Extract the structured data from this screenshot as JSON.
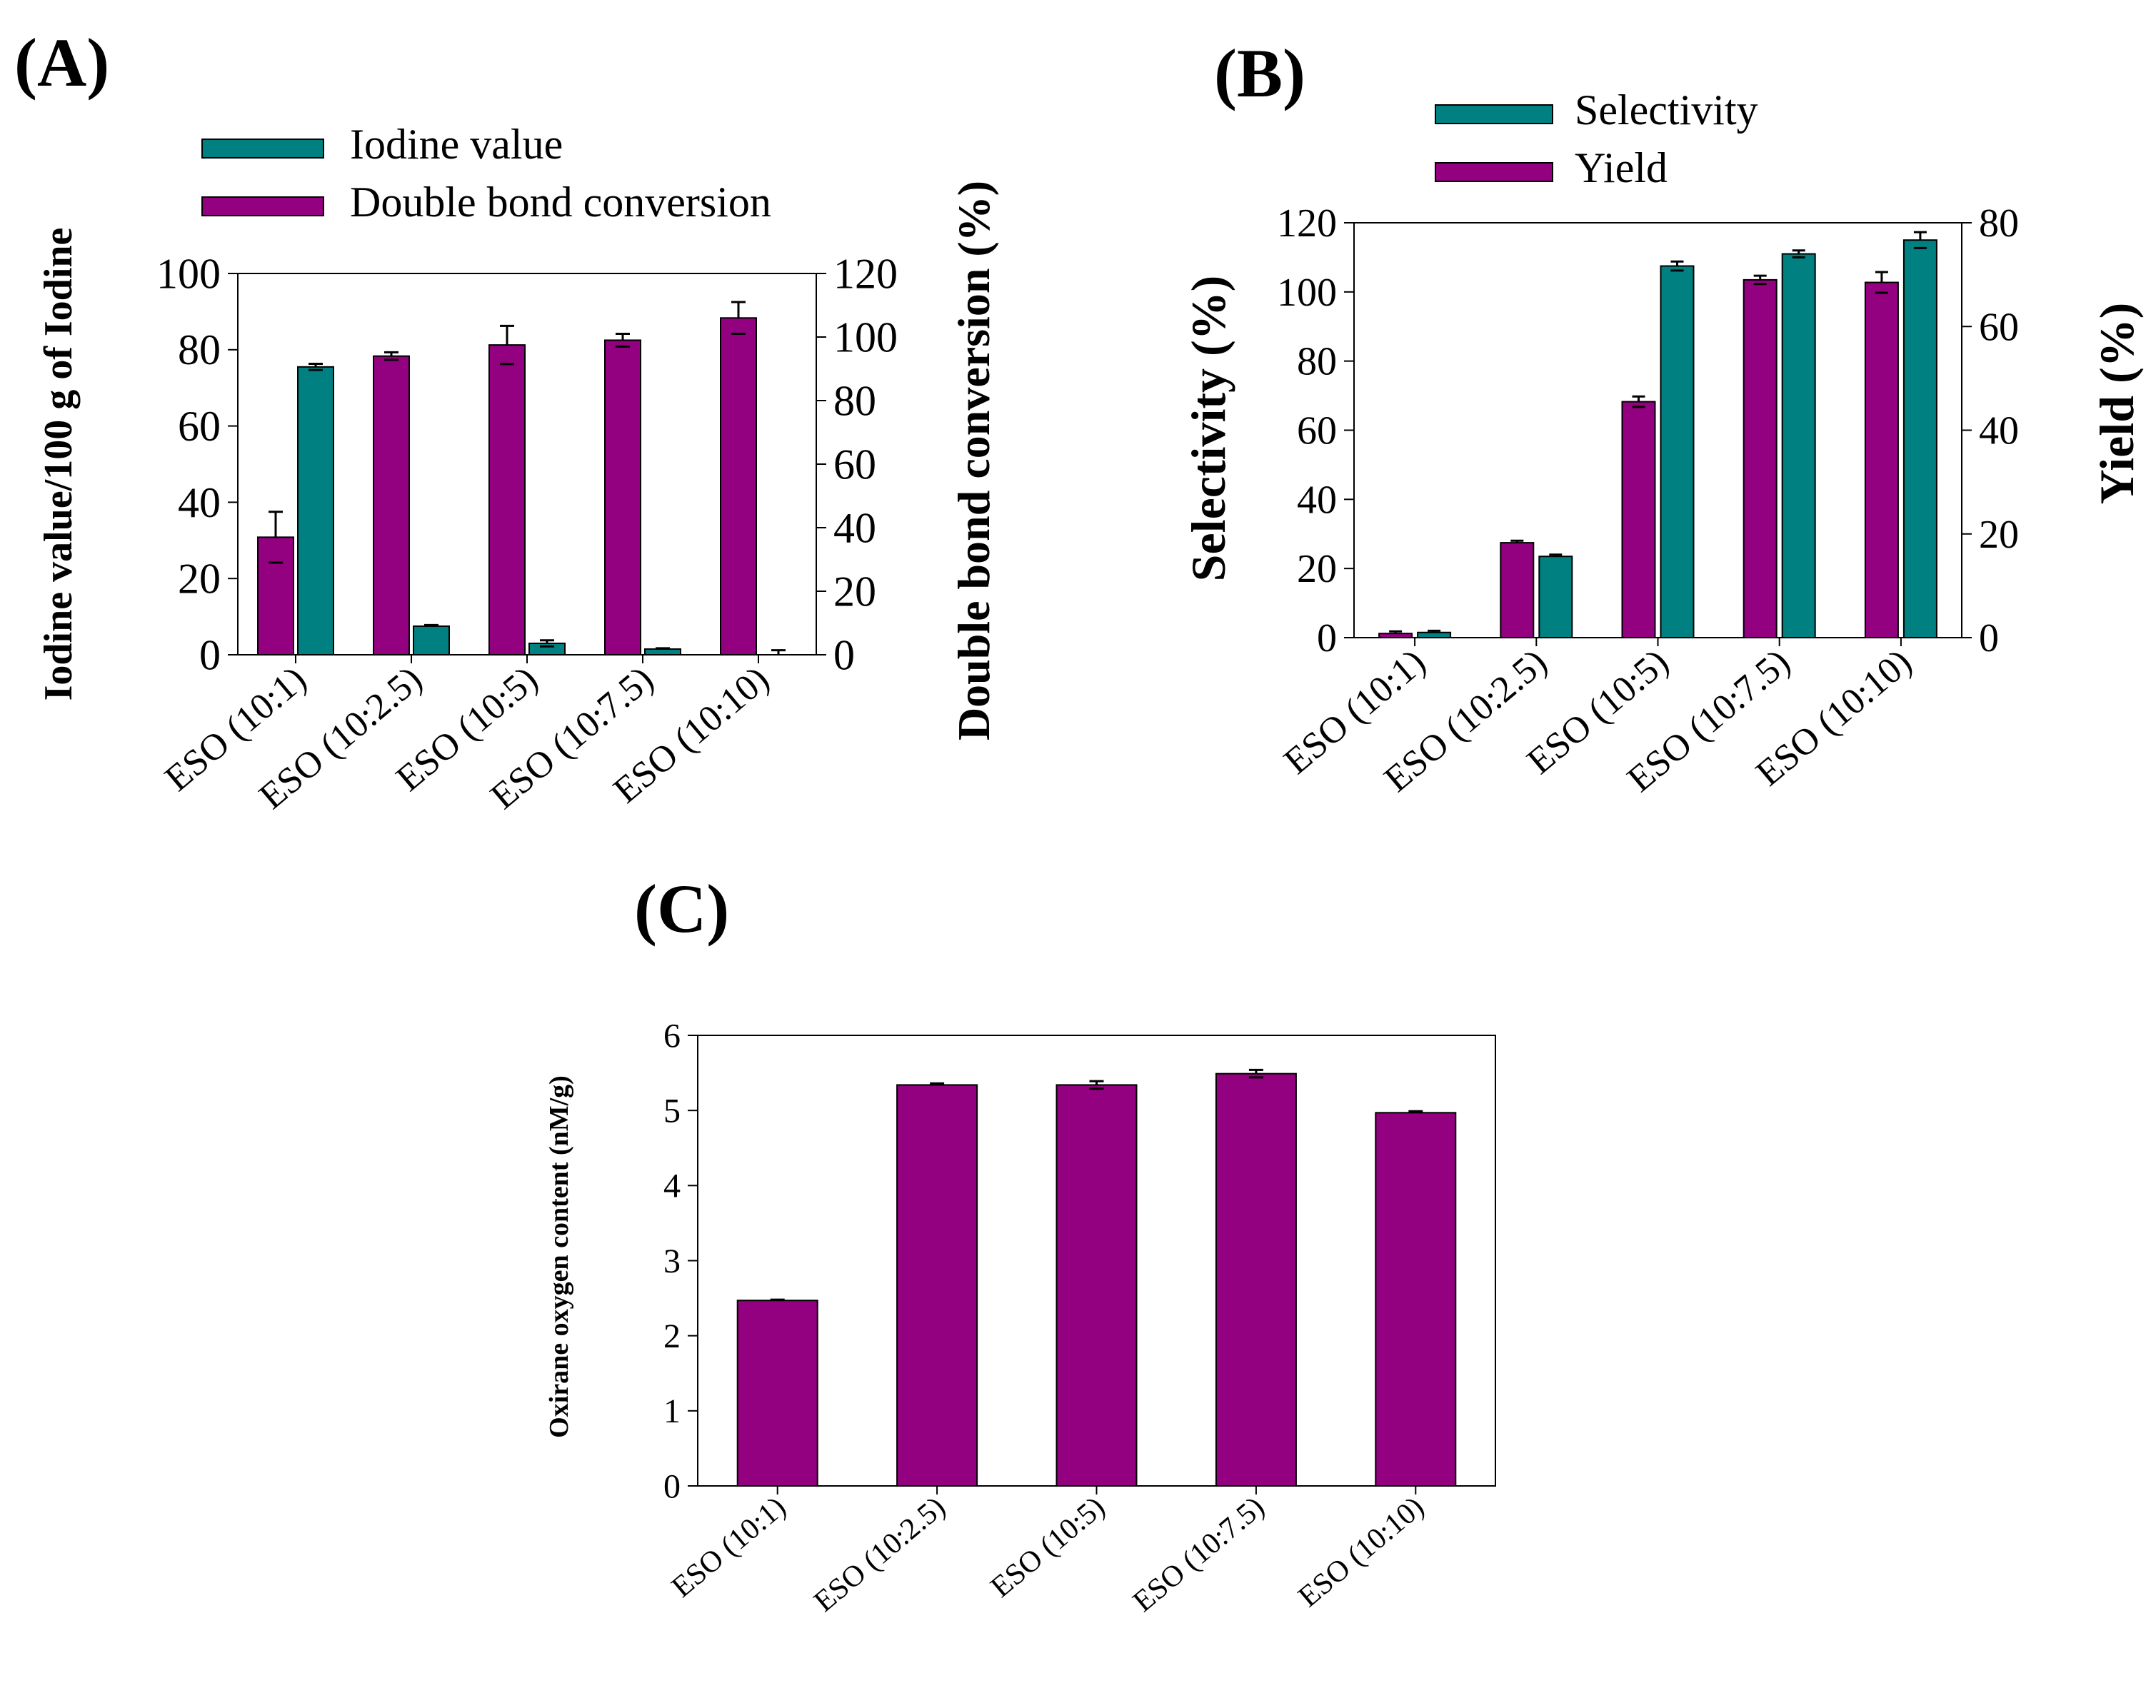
{
  "colors": {
    "teal": "#008080",
    "purple": "#930080",
    "axis": "#000000"
  },
  "chart_data": [
    {
      "panel": "(A)",
      "type": "bar",
      "categories": [
        "ESO (10:1)",
        "ESO (10:2.5)",
        "ESO (10:5)",
        "ESO (10:7.5)",
        "ESO (10:10)"
      ],
      "series": [
        {
          "name": "Iodine value",
          "axis": "left",
          "color": "teal",
          "values": [
            75.5,
            7.5,
            3,
            1.5,
            0
          ],
          "errors": [
            0.8,
            0.3,
            0.8,
            0.2,
            1.2
          ]
        },
        {
          "name": "Double bond conversion",
          "axis": "right",
          "color": "purple",
          "values": [
            37,
            94,
            97.5,
            99,
            106
          ],
          "errors": [
            8,
            1.2,
            6,
            2,
            5
          ]
        }
      ],
      "bar_order": [
        "Double bond conversion",
        "Iodine value"
      ],
      "ylabel": "Iodine value/100 g of Iodine",
      "ylabel2": "Double bond conversion (%)",
      "ylim": [
        0,
        100
      ],
      "yticks": [
        0,
        20,
        40,
        60,
        80,
        100
      ],
      "ylim2": [
        0,
        120
      ],
      "yticks2": [
        0,
        20,
        40,
        60,
        80,
        100,
        120
      ],
      "legend": "top"
    },
    {
      "panel": "(B)",
      "type": "bar",
      "categories": [
        "ESO (10:1)",
        "ESO (10:2.5)",
        "ESO (10:5)",
        "ESO (10:7.5)",
        "ESO (10:10)"
      ],
      "series": [
        {
          "name": "Yield",
          "axis": "right",
          "color": "purple",
          "values": [
            0.8,
            18.3,
            45.5,
            69,
            68.5
          ],
          "errors": [
            0.4,
            0.4,
            1,
            0.8,
            2
          ]
        },
        {
          "name": "Selectivity",
          "axis": "left",
          "color": "teal",
          "values": [
            1.5,
            23.5,
            107.5,
            111,
            115
          ],
          "errors": [
            0.5,
            0.5,
            1.3,
            1,
            2.3
          ]
        }
      ],
      "bar_order": [
        "Yield",
        "Selectivity"
      ],
      "legend_order": [
        "Selectivity",
        "Yield"
      ],
      "ylabel": "Selectivity (%)",
      "ylabel2": "Yield (%)",
      "ylim": [
        0,
        120
      ],
      "yticks": [
        0,
        20,
        40,
        60,
        80,
        100,
        120
      ],
      "ylim2": [
        0,
        80
      ],
      "yticks2": [
        0,
        20,
        40,
        60,
        80
      ],
      "legend": "top"
    },
    {
      "panel": "(C)",
      "type": "bar",
      "categories": [
        "ESO (10:1)",
        "ESO (10:2.5)",
        "ESO (10:5)",
        "ESO (10:7.5)",
        "ESO (10:10)"
      ],
      "series": [
        {
          "name": "Oxirane oxygen content",
          "axis": "left",
          "color": "purple",
          "values": [
            2.47,
            5.34,
            5.34,
            5.49,
            4.97
          ],
          "errors": [
            0.01,
            0.02,
            0.05,
            0.05,
            0.02
          ]
        }
      ],
      "ylabel": "Oxirane oxygen content (nM/g)",
      "ylim": [
        0,
        6
      ],
      "yticks": [
        0,
        1,
        2,
        3,
        4,
        5,
        6
      ],
      "legend": "none"
    }
  ]
}
